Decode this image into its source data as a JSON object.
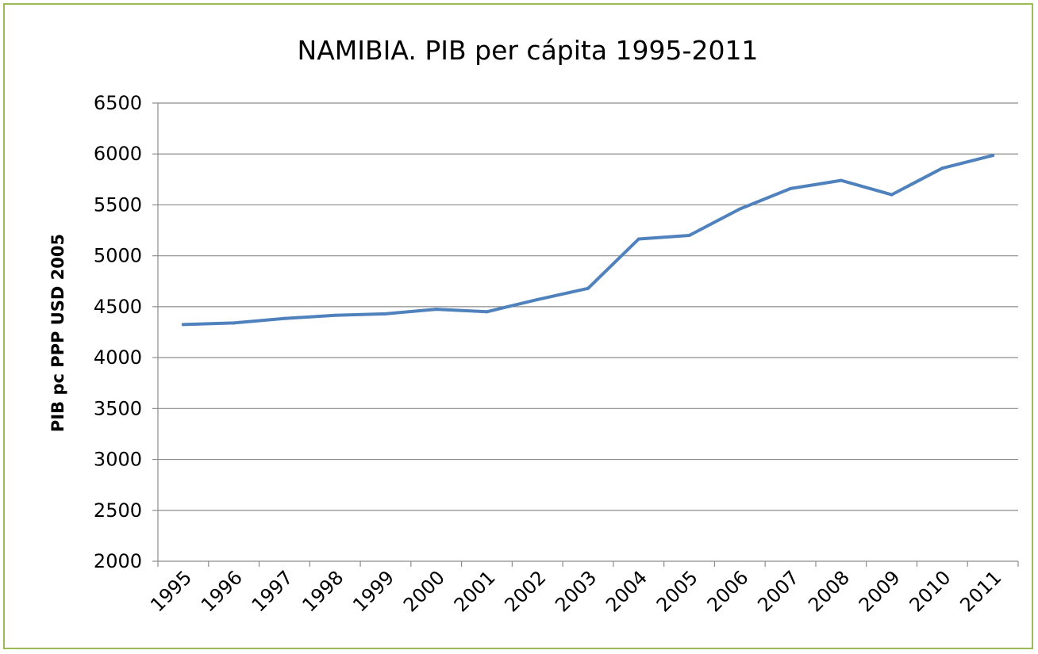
{
  "chart_data": {
    "type": "line",
    "title": "NAMIBIA. PIB per cápita 1995-2011",
    "xlabel": "",
    "ylabel": "PIB pc PPP USD 2005",
    "categories": [
      "1995",
      "1996",
      "1997",
      "1998",
      "1999",
      "2000",
      "2001",
      "2002",
      "2003",
      "2004",
      "2005",
      "2006",
      "2007",
      "2008",
      "2009",
      "2010",
      "2011"
    ],
    "series": [
      {
        "values": [
          4325,
          4340,
          4385,
          4415,
          4430,
          4475,
          4450,
          4570,
          4680,
          5165,
          5200,
          5460,
          5660,
          5740,
          5600,
          5860,
          5985
        ]
      }
    ],
    "y_ticks": [
      "2000",
      "2500",
      "3000",
      "3500",
      "4000",
      "4500",
      "5000",
      "5500",
      "6000",
      "6500"
    ],
    "ylim": [
      2000,
      6500
    ],
    "grid": "horizontal",
    "line_color": "#4f81bd",
    "grid_color": "#8c8c8c",
    "frame_color": "#9bbb59"
  }
}
